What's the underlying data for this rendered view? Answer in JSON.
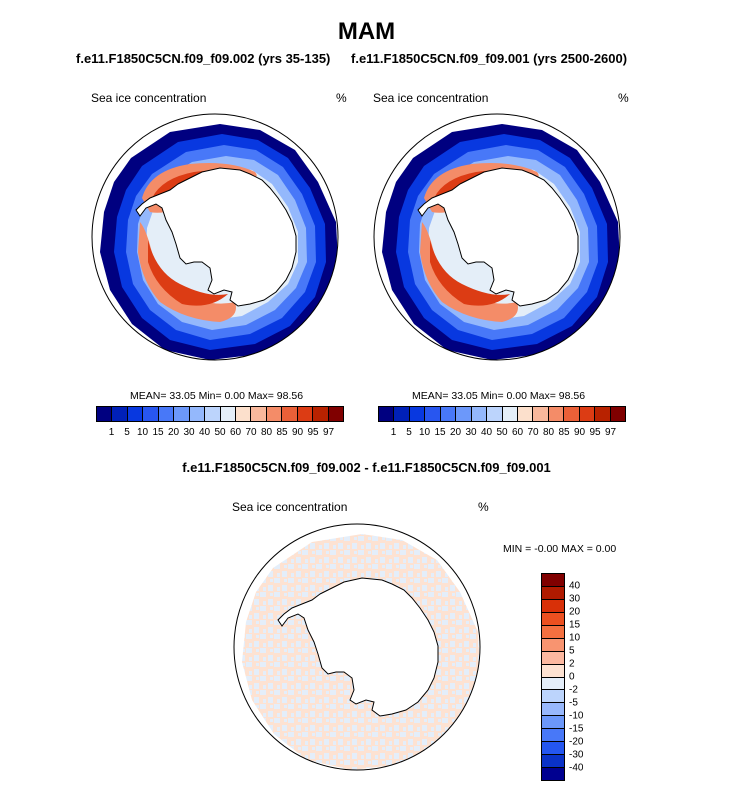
{
  "figure": {
    "season": "MAM",
    "case_a": "f.e11.F1850C5CN.f09_f09.002 (yrs 35-135)",
    "case_b": "f.e11.F1850C5CN.f09_f09.001 (yrs 2500-2600)",
    "diff_title": "f.e11.F1850C5CN.f09_f09.002 - f.e11.F1850C5CN.f09_f09.001"
  },
  "panels": {
    "left": {
      "variable": "Sea ice concentration",
      "units": "%",
      "stats": "MEAN=  33.05  Min=   0.00  Max=  98.56"
    },
    "right": {
      "variable": "Sea ice concentration",
      "units": "%",
      "stats": "MEAN=  33.05  Min=   0.00  Max=  98.56"
    },
    "diff": {
      "variable": "Sea ice concentration",
      "units": "%",
      "stats": "MIN =  -0.00 MAX =   0.00"
    }
  },
  "colorbar_main": {
    "labels": [
      "1",
      "5",
      "10",
      "15",
      "20",
      "30",
      "40",
      "50",
      "60",
      "70",
      "80",
      "85",
      "90",
      "95",
      "97"
    ],
    "colors": [
      "#000080",
      "#0020b8",
      "#0838e0",
      "#2856f0",
      "#4878f8",
      "#6c98fa",
      "#94b8fc",
      "#bcd4fc",
      "#e4eef8",
      "#fce0cc",
      "#f8b89c",
      "#f48c68",
      "#ea6038",
      "#dc3c14",
      "#b82200",
      "#800000"
    ]
  },
  "colorbar_diff": {
    "labels": [
      "40",
      "30",
      "20",
      "15",
      "10",
      "5",
      "2",
      "0",
      "-2",
      "-5",
      "-10",
      "-15",
      "-20",
      "-30",
      "-40"
    ],
    "colors": [
      "#800000",
      "#b01a00",
      "#d83008",
      "#ec5020",
      "#f47040",
      "#f89470",
      "#fcb8a0",
      "#fde2d2",
      "#e4eefa",
      "#bcd4fc",
      "#98b8fc",
      "#6c98fa",
      "#4878f8",
      "#2456f0",
      "#0a32c8",
      "#000090"
    ]
  }
}
